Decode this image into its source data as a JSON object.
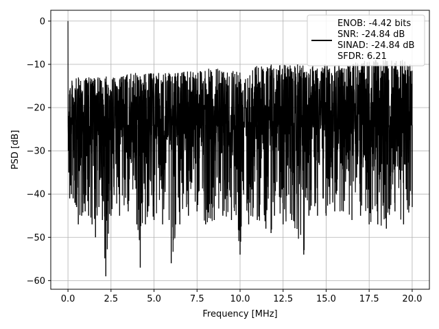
{
  "chart_data": {
    "type": "line",
    "title": "",
    "xlabel": "Frequency [MHz]",
    "ylabel": "PSD [dB]",
    "xlim": [
      -1.0,
      21.0
    ],
    "ylim": [
      -62,
      2.5
    ],
    "xticks": [
      0.0,
      2.5,
      5.0,
      7.5,
      10.0,
      12.5,
      15.0,
      17.5,
      20.0
    ],
    "xtick_labels": [
      "0.0",
      "2.5",
      "5.0",
      "7.5",
      "10.0",
      "12.5",
      "15.0",
      "17.5",
      "20.0"
    ],
    "yticks": [
      0,
      -10,
      -20,
      -30,
      -40,
      -50,
      -60
    ],
    "ytick_labels": [
      "0",
      "−10",
      "−20",
      "−30",
      "−40",
      "−50",
      "−60"
    ],
    "grid": true,
    "legend_position": "top-right",
    "legend_lines": [
      "ENOB: -4.42 bits",
      "SNR: -24.84 dB",
      "SINAD: -24.84 dB",
      "SFDR: 6.21"
    ],
    "series_color": "#000000",
    "series": [
      {
        "x": [
          0,
          0.02,
          0.05,
          0.1,
          0.15,
          0.2,
          0.3,
          0.4,
          0.5,
          0.6,
          0.8,
          1.0,
          1.2,
          1.4,
          1.6,
          1.8,
          2.0,
          2.2,
          2.5,
          3.0,
          3.5,
          4.0,
          4.2,
          4.5,
          5.0,
          5.5,
          6.0,
          6.5,
          7.0,
          7.5,
          8.0,
          8.5,
          9.0,
          9.5,
          10.0,
          10.5,
          11.0,
          11.5,
          11.8,
          12.0,
          12.5,
          13.0,
          13.7,
          14.0,
          14.5,
          15.0,
          15.5,
          16.0,
          16.5,
          17.0,
          17.5,
          18.0,
          18.5,
          19.0,
          19.5,
          20.0
        ],
        "y_peak": [
          0,
          -9,
          -12,
          -13,
          -13,
          -14,
          -13,
          -14,
          -13,
          -13,
          -13,
          -13,
          -13,
          -13,
          -13,
          -13,
          -13,
          -12,
          -13,
          -13,
          -12,
          -12,
          -12,
          -12,
          -12,
          -12,
          -12,
          -12,
          -11,
          -11,
          -11,
          -11,
          -11,
          -11,
          -11,
          -11,
          -10,
          -10,
          -10,
          -10,
          -10,
          -10,
          -10,
          -10,
          -10,
          -10,
          -10,
          -10,
          -10,
          -9,
          -9,
          -9,
          -9,
          -9,
          -9,
          -9
        ],
        "y_min": [
          -10,
          -30,
          -35,
          -41,
          -38,
          -40,
          -41,
          -42,
          -43,
          -47,
          -45,
          -44,
          -45,
          -47,
          -50,
          -43,
          -46,
          -59,
          -45,
          -45,
          -44,
          -47,
          -57,
          -47,
          -46,
          -47,
          -56,
          -47,
          -45,
          -44,
          -47,
          -46,
          -45,
          -46,
          -54,
          -47,
          -46,
          -48,
          -49,
          -45,
          -47,
          -46,
          -54,
          -45,
          -45,
          -45,
          -44,
          -44,
          -46,
          -45,
          -47,
          -47,
          -48,
          -44,
          -47,
          -43
        ]
      }
    ]
  }
}
